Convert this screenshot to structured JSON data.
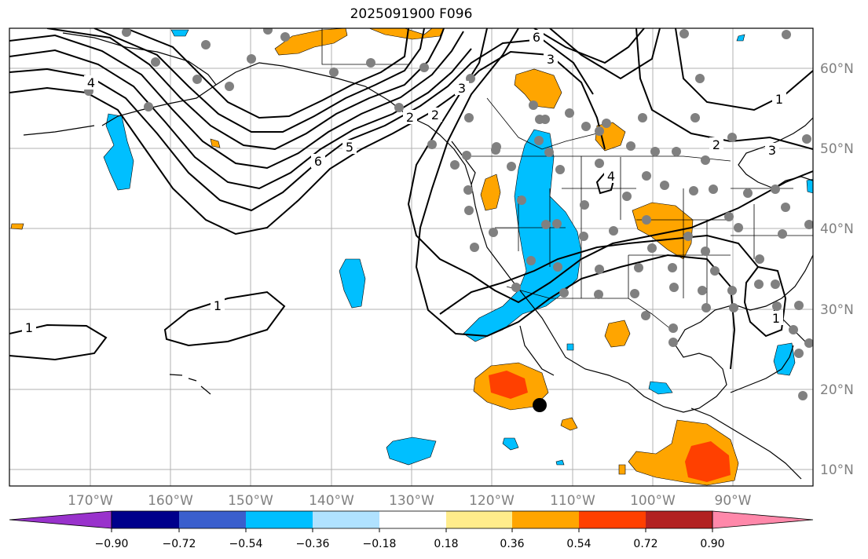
{
  "title": "2025091900 F096",
  "map": {
    "lon_labels": [
      "170°W",
      "160°W",
      "150°W",
      "140°W",
      "130°W",
      "120°W",
      "110°W",
      "100°W",
      "90°W"
    ],
    "lat_labels": [
      "60°N",
      "50°N",
      "40°N",
      "30°N",
      "20°N",
      "10°N"
    ],
    "contour_labels": [
      "1",
      "1",
      "2",
      "3",
      "4",
      "5",
      "6",
      "1",
      "2",
      "3",
      "6",
      "4",
      "3",
      "2",
      "1"
    ]
  },
  "colorbar": {
    "colors": [
      "#9932cc",
      "#00008b",
      "#3a5fcd",
      "#00bfff",
      "#b0e2ff",
      "#ffffff",
      "#ffec8b",
      "#ffa500",
      "#ff4000",
      "#b22222",
      "#ff88aa"
    ],
    "tick_labels": [
      "−0.90",
      "−0.72",
      "−0.54",
      "−0.36",
      "−0.18",
      "0.18",
      "0.36",
      "0.54",
      "0.72",
      "0.90"
    ]
  },
  "colors": {
    "positive_mid": "#ffa500",
    "positive_high": "#ff4000",
    "negative_mid": "#00bfff",
    "station_dots": "#808080",
    "storm_marker": "#000000"
  }
}
